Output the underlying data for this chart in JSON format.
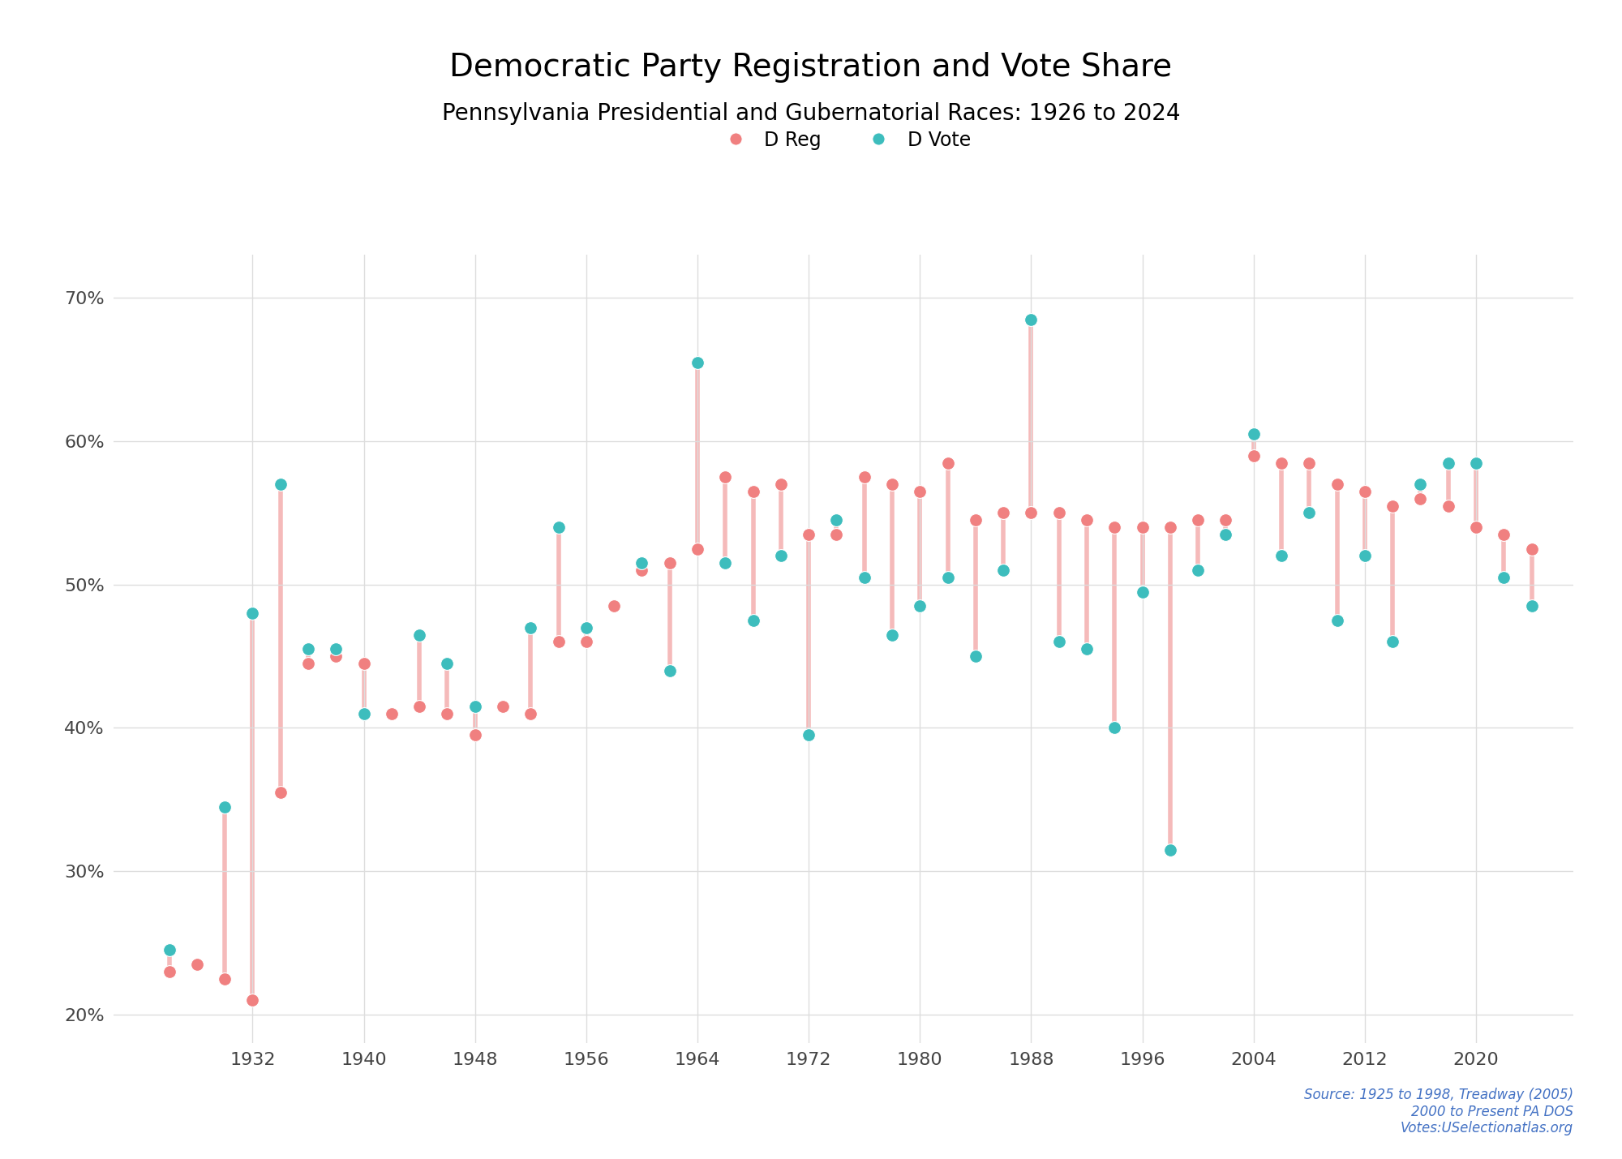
{
  "title": "Democratic Party Registration and Vote Share",
  "subtitle": "Pennsylvania Presidential and Gubernatorial Races: 1926 to 2024",
  "source_line1": "Source: 1925 to 1998, Treadway (2005)",
  "source_line2": "2000 to Present PA DOS",
  "source_line3": "Votes:USelectionatlas.org",
  "years": [
    1926,
    1928,
    1930,
    1932,
    1934,
    1936,
    1938,
    1940,
    1942,
    1944,
    1946,
    1948,
    1950,
    1952,
    1954,
    1956,
    1958,
    1960,
    1962,
    1964,
    1966,
    1968,
    1970,
    1972,
    1974,
    1976,
    1978,
    1980,
    1982,
    1984,
    1986,
    1988,
    1990,
    1992,
    1994,
    1996,
    1998,
    2000,
    2002,
    2004,
    2006,
    2008,
    2010,
    2012,
    2014,
    2016,
    2018,
    2020,
    2022,
    2024
  ],
  "d_reg": [
    23.0,
    23.5,
    22.5,
    21.0,
    35.5,
    44.5,
    45.0,
    44.5,
    41.0,
    41.5,
    41.0,
    39.5,
    41.5,
    41.0,
    46.0,
    46.0,
    48.5,
    51.0,
    51.5,
    52.5,
    57.5,
    56.5,
    57.0,
    53.5,
    53.5,
    57.5,
    57.0,
    56.5,
    58.5,
    54.5,
    55.0,
    55.0,
    55.0,
    54.5,
    54.0,
    54.0,
    54.0,
    54.5,
    54.5,
    59.0,
    58.5,
    58.5,
    57.0,
    56.5,
    55.5,
    56.0,
    55.5,
    54.0,
    53.5,
    52.5
  ],
  "d_vote": [
    24.5,
    null,
    34.5,
    48.0,
    57.0,
    45.5,
    45.5,
    41.0,
    null,
    46.5,
    44.5,
    41.5,
    null,
    47.0,
    54.0,
    47.0,
    null,
    51.5,
    44.0,
    65.5,
    51.5,
    47.5,
    52.0,
    39.5,
    54.5,
    50.5,
    46.5,
    48.5,
    50.5,
    45.0,
    51.0,
    68.5,
    46.0,
    45.5,
    40.0,
    49.5,
    31.5,
    51.0,
    53.5,
    60.5,
    52.0,
    55.0,
    47.5,
    52.0,
    46.0,
    57.0,
    58.5,
    58.5,
    50.5,
    48.5
  ],
  "dreg_color": "#F08080",
  "dvote_color": "#3DBDBD",
  "connector_color": "#F5BABA",
  "background_color": "#FFFFFF",
  "grid_color": "#DDDDDD",
  "ylim": [
    18,
    73
  ],
  "yticks": [
    20,
    30,
    40,
    50,
    60,
    70
  ],
  "ytick_labels": [
    "20%",
    "30%",
    "40%",
    "50%",
    "60%",
    "70%"
  ],
  "title_fontsize": 28,
  "subtitle_fontsize": 20,
  "legend_fontsize": 17,
  "tick_fontsize": 16,
  "source_fontsize": 12,
  "marker_size": 130,
  "connector_lw": 4.0,
  "xlim_left": 1922,
  "xlim_right": 2027,
  "xticks": [
    1932,
    1940,
    1948,
    1956,
    1964,
    1972,
    1980,
    1988,
    1996,
    2004,
    2012,
    2020
  ]
}
